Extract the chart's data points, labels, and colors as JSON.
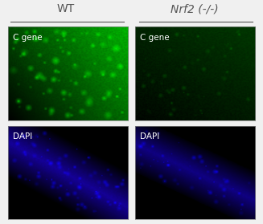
{
  "title_left": "WT",
  "title_right": "Nrf2 (-/-)",
  "label_cgene": "C gene",
  "label_dapi": "DAPI",
  "bg_color": "#f0f0f0",
  "panel_bg": "#000000",
  "title_fontsize": 10,
  "label_fontsize": 7.5,
  "text_color_white": "#ffffff",
  "header_line_color": "#555555",
  "header_text_color": "#555555"
}
